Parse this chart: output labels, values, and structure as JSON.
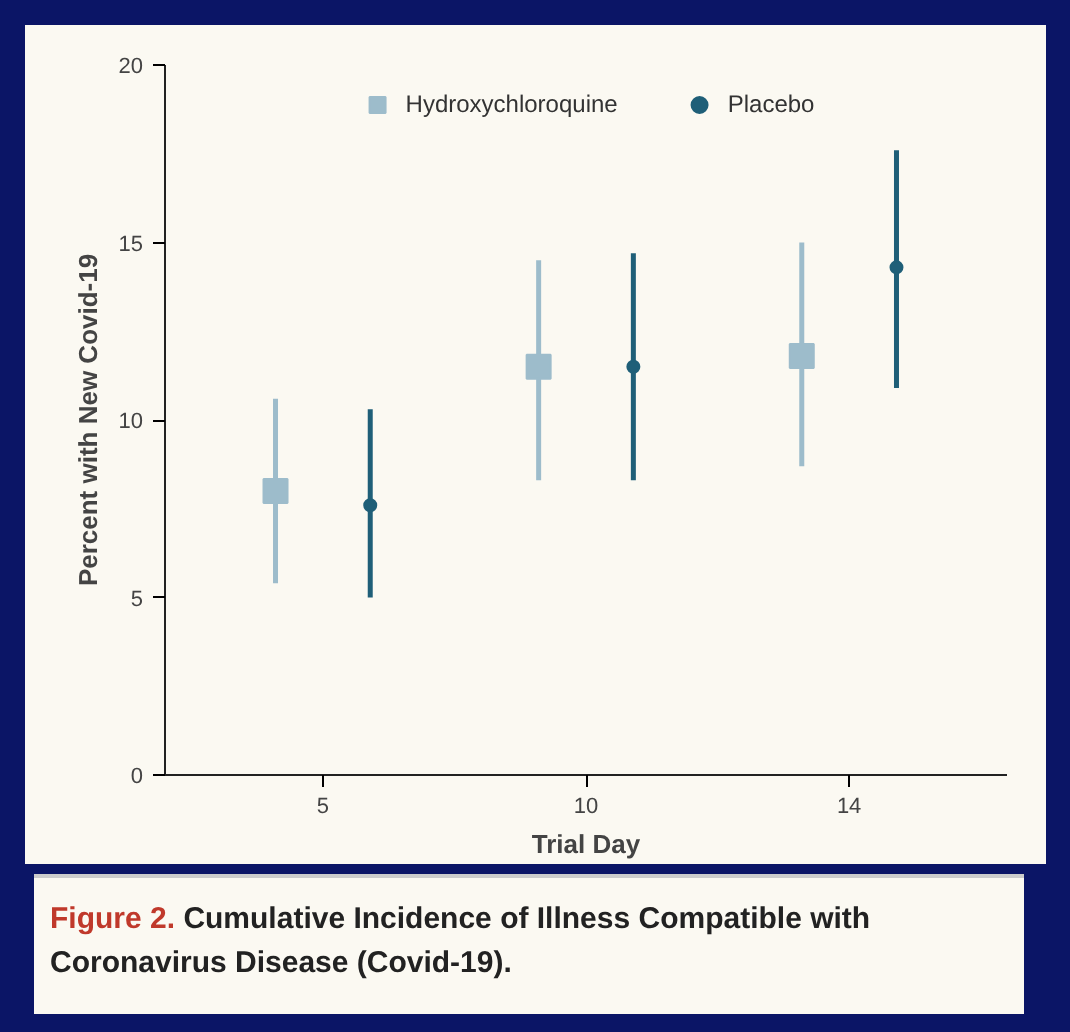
{
  "chart_data": {
    "type": "scatter",
    "xlabel": "Trial Day",
    "ylabel": "Percent with New Covid-19",
    "categories": [
      "5",
      "10",
      "14"
    ],
    "ylim": [
      0,
      20
    ],
    "yticks": [
      0,
      5,
      10,
      15,
      20
    ],
    "grid": false,
    "legend": "top",
    "series": [
      {
        "name": "Hydroxychloroquine",
        "color": "#9dbccb",
        "marker": "square",
        "values": [
          8.0,
          11.5,
          11.8
        ],
        "errors": [
          [
            5.4,
            10.6
          ],
          [
            8.3,
            14.5
          ],
          [
            8.7,
            15.0
          ]
        ]
      },
      {
        "name": "Placebo",
        "color": "#1f5f78",
        "marker": "circle",
        "values": [
          7.6,
          11.5,
          14.3
        ],
        "errors": [
          [
            5.0,
            10.3
          ],
          [
            8.3,
            14.7
          ],
          [
            10.9,
            17.6
          ]
        ]
      }
    ],
    "annotations": [
      "Figure 2.",
      "Cumulative Incidence of Illness Compatible with Coronavirus Disease (Covid-19)."
    ]
  }
}
